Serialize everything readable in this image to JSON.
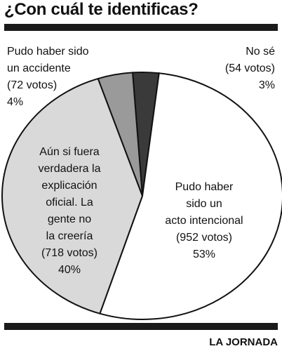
{
  "title": "¿Con cuál te identificas?",
  "credit": "LA JORNADA",
  "chart_data": {
    "type": "pie",
    "title": "¿Con cuál te identificas?",
    "slices": [
      {
        "key": "intencional",
        "lines": [
          "Pudo haber",
          "sido un",
          "acto intencional",
          "(952 votos)",
          "53%"
        ],
        "votes": 952,
        "percent": 53,
        "color": "#ffffff"
      },
      {
        "key": "no_creeria",
        "lines": [
          "Aún si fuera",
          "verdadera la",
          "explicación",
          "oficial. La",
          "gente no",
          "la creería",
          "(718 votos)",
          "40%"
        ],
        "votes": 718,
        "percent": 40,
        "color": "#d9d9d9"
      },
      {
        "key": "accidente",
        "lines": [
          "Pudo haber sido",
          "un accidente",
          "(72 votos)",
          "4%"
        ],
        "votes": 72,
        "percent": 4,
        "color": "#9a9a9a"
      },
      {
        "key": "no_se",
        "lines": [
          "No sé",
          "(54 votos)",
          "3%"
        ],
        "votes": 54,
        "percent": 3,
        "color": "#3a3a3a"
      }
    ]
  }
}
